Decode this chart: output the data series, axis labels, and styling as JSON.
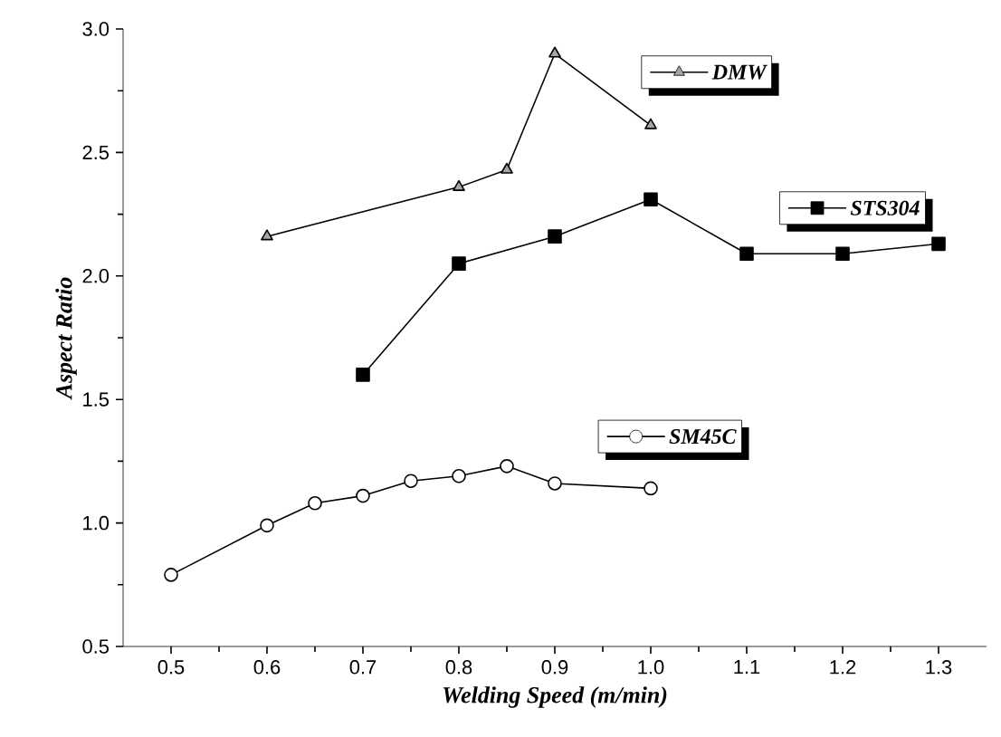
{
  "chart_data": {
    "type": "line",
    "xlabel": "Welding Speed  (m/min)",
    "ylabel": "Aspect Ratio",
    "xlim": [
      0.45,
      1.35
    ],
    "ylim": [
      0.5,
      3.0
    ],
    "xticks": [
      0.5,
      0.6,
      0.7,
      0.8,
      0.9,
      {
        "value": 1.0,
        "label": "1.0"
      },
      1.1,
      1.2,
      1.3
    ],
    "yticks": [
      0.5,
      {
        "value": 1.0,
        "label": "1.0"
      },
      1.5,
      {
        "value": 2.0,
        "label": "2.0"
      },
      2.5,
      {
        "value": 3.0,
        "label": "3.0"
      }
    ],
    "grid": false,
    "legend": "right",
    "line_style": "solid",
    "series": [
      {
        "name": "DMW",
        "color": "#000000",
        "marker": "triangle",
        "x": [
          0.6,
          0.8,
          0.85,
          0.9,
          1.0
        ],
        "values": [
          2.16,
          2.36,
          2.43,
          2.9,
          2.61
        ]
      },
      {
        "name": "STS304",
        "color": "#000000",
        "marker": "square",
        "x": [
          0.7,
          0.8,
          0.9,
          1.0,
          1.1,
          1.2,
          1.3
        ],
        "values": [
          1.6,
          2.05,
          2.16,
          2.31,
          2.09,
          2.09,
          2.13
        ]
      },
      {
        "name": "SM45C",
        "color": "#000000",
        "marker": "circle",
        "x": [
          0.5,
          0.6,
          0.65,
          0.7,
          0.75,
          0.8,
          0.85,
          0.9,
          1.0
        ],
        "values": [
          0.79,
          0.99,
          1.08,
          1.11,
          1.17,
          1.19,
          1.23,
          1.16,
          1.14
        ]
      }
    ]
  }
}
